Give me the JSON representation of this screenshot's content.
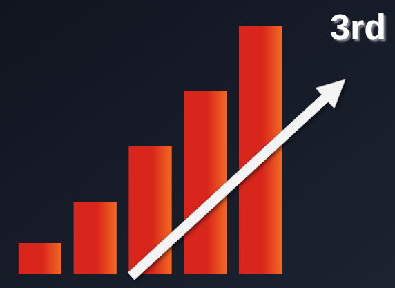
{
  "chart_data": {
    "type": "bar",
    "title": "3rd",
    "categories": [
      null,
      null,
      null,
      null,
      null
    ],
    "values": [
      45,
      105,
      185,
      265,
      360
    ],
    "color": "#d9261c",
    "ylim": [
      0,
      380
    ],
    "grid": false,
    "tick_labels": false
  }
}
